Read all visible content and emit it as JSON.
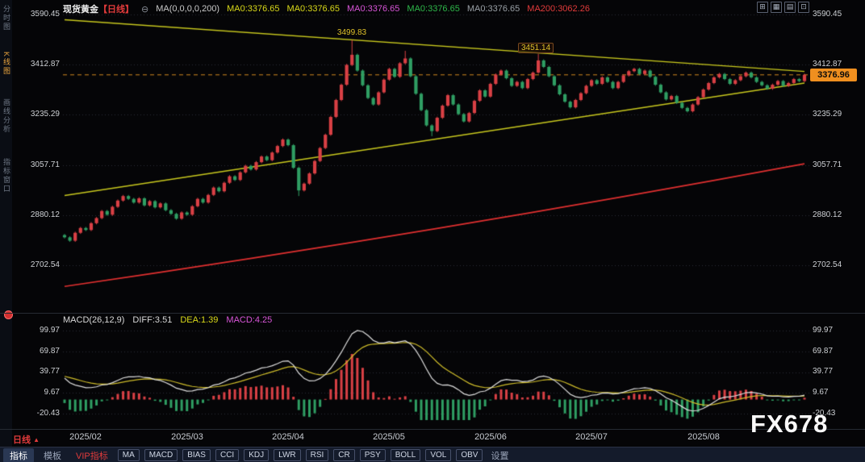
{
  "header": {
    "symbol": "现货黄金",
    "period": "【日线】",
    "collapse_glyph": "⊖",
    "ma_config": "MA(0,0,0,0,200)",
    "ma_values": [
      "MA0:3376.65",
      "MA0:3376.65",
      "MA0:3376.65",
      "MA0:3376.65",
      "MA0:3376.65",
      "MA200:3062.26"
    ]
  },
  "top_icons": [
    {
      "glyph": "⊞"
    },
    {
      "glyph": "▦"
    },
    {
      "glyph": "▤"
    },
    {
      "glyph": "⊡"
    }
  ],
  "sidebar": {
    "items": [
      {
        "label": "分时图"
      },
      {
        "label": "K线图"
      },
      {
        "label": "画线分析"
      },
      {
        "label": "指标窗口"
      }
    ]
  },
  "time_axis": {
    "period": "日线",
    "period_arrow": "▲"
  },
  "watermark": "FX678",
  "toolbar": {
    "tabs": [
      "指标",
      "模板",
      "VIP指标"
    ],
    "indicators": [
      "MA",
      "MACD",
      "BIAS",
      "CCI",
      "KDJ",
      "LWR",
      "RSI",
      "CR",
      "PSY",
      "BOLL",
      "VOL",
      "OBV"
    ],
    "settings": "设置"
  },
  "colors": {
    "up": "#d94045",
    "down": "#2f9e63",
    "ma200": "#e03030",
    "trendline": "#c8c81e",
    "price_line": "#d28a20",
    "diff_line": "#dedede",
    "dea_line": "#cdbb2a",
    "grid": "#2b2f36",
    "accent_orange": "#ef8f1f"
  },
  "chart_data": [
    {
      "type": "candlestick",
      "title": "现货黄金 日线",
      "y_ticks": [
        3590.45,
        3412.87,
        3235.29,
        3057.71,
        2880.12,
        2702.54
      ],
      "x_ticks": [
        {
          "label": "2025/02",
          "index": 4
        },
        {
          "label": "2025/03",
          "index": 23
        },
        {
          "label": "2025/04",
          "index": 42
        },
        {
          "label": "2025/05",
          "index": 61
        },
        {
          "label": "2025/06",
          "index": 80
        },
        {
          "label": "2025/07",
          "index": 99
        },
        {
          "label": "2025/08",
          "index": 120
        }
      ],
      "last_price": 3376.96,
      "first_open": 2810,
      "default_wick": 4,
      "closes": [
        2802,
        2790,
        2818,
        2835,
        2828,
        2852,
        2870,
        2895,
        2882,
        2910,
        2932,
        2948,
        2938,
        2925,
        2940,
        2915,
        2930,
        2908,
        2922,
        2898,
        2885,
        2868,
        2890,
        2882,
        2912,
        2938,
        2925,
        2952,
        2978,
        2965,
        2995,
        3018,
        3005,
        3032,
        3055,
        3042,
        3068,
        3088,
        3075,
        3102,
        3125,
        3148,
        3128,
        3048,
        2968,
        2992,
        3028,
        3072,
        3118,
        3165,
        3228,
        3288,
        3342,
        3412,
        3448,
        3392,
        3340,
        3295,
        3272,
        3315,
        3360,
        3398,
        3370,
        3418,
        3435,
        3372,
        3310,
        3252,
        3198,
        3178,
        3225,
        3268,
        3305,
        3272,
        3238,
        3212,
        3242,
        3285,
        3322,
        3300,
        3345,
        3378,
        3392,
        3365,
        3338,
        3352,
        3330,
        3362,
        3385,
        3428,
        3405,
        3372,
        3340,
        3308,
        3282,
        3262,
        3288,
        3312,
        3338,
        3358,
        3345,
        3368,
        3352,
        3330,
        3352,
        3375,
        3390,
        3398,
        3380,
        3392,
        3370,
        3342,
        3315,
        3290,
        3302,
        3278,
        3260,
        3248,
        3272,
        3298,
        3325,
        3348,
        3368,
        3380,
        3362,
        3345,
        3358,
        3372,
        3385,
        3368,
        3352,
        3340,
        3328,
        3342,
        3355,
        3338,
        3348,
        3362,
        3355,
        3376.96
      ],
      "overrides": {
        "44": {
          "low": 2948
        },
        "54": {
          "high": 3499.83
        },
        "64": {
          "high": 3462
        },
        "69": {
          "low": 3160
        },
        "89": {
          "high": 3451.14
        }
      },
      "ma200": {
        "label": "MA200:3062.26",
        "start": 2628,
        "end": 3062.26
      },
      "trendlines": [
        {
          "from": [
            0,
            3572
          ],
          "to": [
            139,
            3389
          ]
        },
        {
          "from": [
            0,
            2950
          ],
          "to": [
            139,
            3348
          ]
        }
      ],
      "peaks": [
        {
          "value": 3499.83,
          "index": 54
        },
        {
          "value": 3451.14,
          "index": 89
        }
      ]
    },
    {
      "type": "macd",
      "title": "MACD(26,12,9)",
      "diff": 3.51,
      "dea": 1.39,
      "macd": 4.25,
      "diff_label": "DIFF:3.51",
      "dea_label": "DEA:1.39",
      "macd_label": "MACD:4.25",
      "y_ticks": [
        99.97,
        69.87,
        39.77,
        9.67,
        -20.43
      ]
    }
  ]
}
